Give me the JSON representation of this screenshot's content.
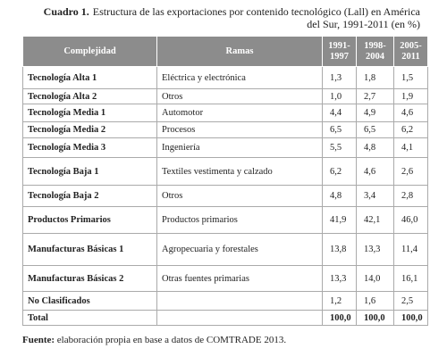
{
  "title": {
    "label": "Cuadro 1.",
    "text": "Estructura de las exportaciones por contenido tecnológico (Lall) en América del Sur, 1991-2011 (en %)"
  },
  "table": {
    "header": [
      "Complejidad",
      "Ramas",
      "1991-1997",
      "1998-2004",
      "2005-2011"
    ],
    "rows": [
      [
        "Tecnología Alta 1",
        "Eléctrica y electrónica",
        "1,3",
        "1,8",
        "1,5"
      ],
      [
        "Tecnología Alta 2",
        "Otros",
        "1,0",
        "2,7",
        "1,9"
      ],
      [
        "Tecnología Media 1",
        "Automotor",
        "4,4",
        "4,9",
        "4,6"
      ],
      [
        "Tecnología Media 2",
        "Procesos",
        "6,5",
        "6,5",
        "6,2"
      ],
      [
        "Tecnología Media 3",
        "Ingeniería",
        "5,5",
        "4,8",
        "4,1"
      ],
      [
        "Tecnología Baja 1",
        "Textiles vestimenta y calzado",
        "6,2",
        "4,6",
        "2,6"
      ],
      [
        "Tecnología Baja 2",
        "Otros",
        "4,8",
        "3,4",
        "2,8"
      ],
      [
        "Productos Primarios",
        "Productos primarios",
        "41,9",
        "42,1",
        "46,0"
      ],
      [
        "Manufacturas Básicas 1",
        "Agropecuaria y forestales",
        "13,8",
        "13,3",
        "11,4"
      ],
      [
        "Manufacturas Básicas 2",
        "Otras fuentes primarias",
        "13,3",
        "14,0",
        "16,1"
      ],
      [
        "No Clasificados",
        "",
        "1,2",
        "1,6",
        "2,5"
      ],
      [
        "Total",
        "",
        "100,0",
        "100,0",
        "100,0"
      ]
    ]
  },
  "footer": {
    "label": "Fuente:",
    "text": "elaboración propia en base a datos de COMTRADE 2013."
  }
}
